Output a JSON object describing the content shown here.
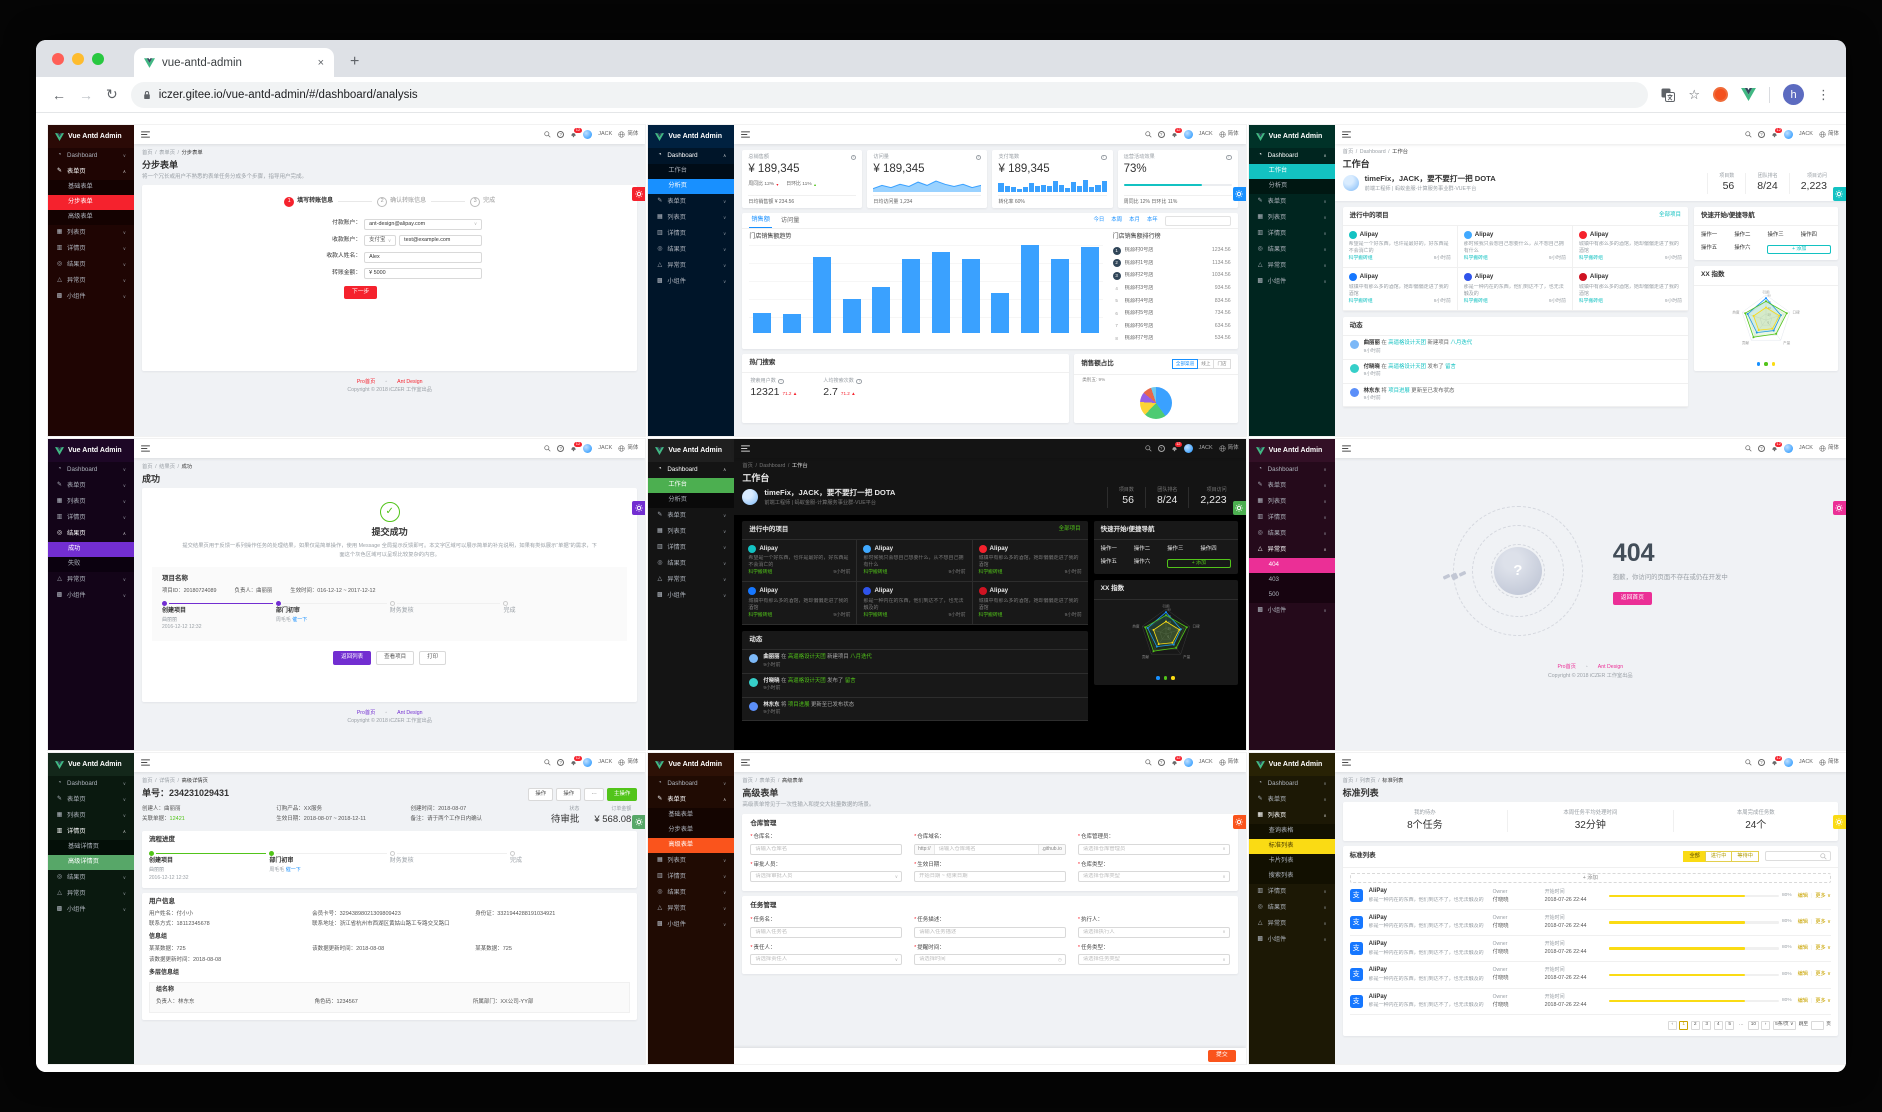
{
  "browser": {
    "tab_title": "vue-antd-admin",
    "url": "iczer.gitee.io/vue-antd-admin/#/dashboard/analysis",
    "profile_initial": "h"
  },
  "shared": {
    "logo": "Vue Antd Admin",
    "user": "JACK",
    "badge": "12",
    "lang": "简体",
    "menu": [
      {
        "id": "dash",
        "label": "Dashboard",
        "children": [
          "工作台",
          "分析页"
        ]
      },
      {
        "id": "form",
        "label": "表单页",
        "children": [
          "基础表单",
          "分步表单",
          "高级表单"
        ]
      },
      {
        "id": "list",
        "label": "列表页",
        "children": [
          "查询表格",
          "标准列表",
          "卡片列表",
          "搜索列表"
        ]
      },
      {
        "id": "detail",
        "label": "详情页",
        "children": [
          "基础详情页",
          "高级详情页"
        ]
      },
      {
        "id": "result",
        "label": "结果页",
        "children": [
          "成功",
          "失败"
        ]
      },
      {
        "id": "exception",
        "label": "异常页",
        "children": [
          "404",
          "403",
          "500"
        ]
      },
      {
        "id": "widget",
        "label": "小组件",
        "children": []
      }
    ],
    "footer_links": [
      "Pro首页",
      "Ant Design"
    ],
    "copyright": "Copyright © 2018 iCZER 工作室出品"
  },
  "workbench": {
    "breadcrumb": [
      "首页",
      "Dashboard",
      "工作台"
    ],
    "title": "工作台",
    "greeting": "timeFix，JACK，要不要打一把 DOTA",
    "role": "前端工程师 | 蚂蚁金服-计算服务事业群-VUE平台",
    "stats": [
      {
        "label": "项目数",
        "value": "56"
      },
      {
        "label": "团队排名",
        "value": "8/24"
      },
      {
        "label": "项目访问",
        "value": "2,223"
      }
    ],
    "projects_title": "进行中的项目",
    "all_link": "全部项目",
    "project_name": "Alipay",
    "group": "科学搬砖组",
    "time": "9小时前",
    "projects": [
      {
        "desc": "希望是一个好东西，也许是最好的，好东西是不会消亡的",
        "color": "#13c2c2"
      },
      {
        "desc": "那时候我只会想自己想要什么，从不想自己拥有什么",
        "color": "#40a9ff"
      },
      {
        "desc": "城镇中有那么多的酒馆，她却偏偏走进了我的酒馆",
        "color": "#f5222d"
      },
      {
        "desc": "城镇中有那么多的酒馆，她却偏偏走进了我的酒馆",
        "color": "#1677ff"
      },
      {
        "desc": "那是一种内在的东西，他们到达不了，也无法触及的",
        "color": "#2f54eb"
      },
      {
        "desc": "城镇中有那么多的酒馆，她却偏偏走进了我的酒馆",
        "color": "#cf1322"
      }
    ],
    "quick_title": "快速开始/便捷导航",
    "ops": [
      "操作一",
      "操作二",
      "操作三",
      "操作四",
      "操作五",
      "操作六"
    ],
    "add": "添加",
    "radar_title": "XX 指数",
    "radar": {
      "axes": [
        "引用",
        "口碑",
        "产量",
        "贡献",
        "热度"
      ],
      "max": 80,
      "rings": [
        20,
        40,
        60,
        80
      ],
      "series": [
        {
          "color": "#1890ff",
          "values": [
            70,
            50,
            42,
            50,
            62
          ]
        },
        {
          "color": "#52c41a",
          "values": [
            60,
            70,
            55,
            68,
            70
          ]
        },
        {
          "color": "#fadb14",
          "values": [
            40,
            45,
            35,
            40,
            42
          ]
        }
      ]
    },
    "feed_title": "动态",
    "feed": [
      {
        "user": "曲丽丽",
        "t1": "在",
        "link1": "高逼格设计天团",
        "t2": "新建项目",
        "link2": "八月迭代",
        "time": "9小时前",
        "color": "#7cb8f7"
      },
      {
        "user": "付晓晓",
        "t1": "在",
        "link1": "高逼格设计天团",
        "t2": "发布了",
        "link2": "留言",
        "time": "9小时前",
        "color": "#36cfc9"
      },
      {
        "user": "林东东",
        "t1": "将",
        "link1": "项目进展",
        "t2": "更新至已发布状态",
        "link2": "",
        "time": "9小时前",
        "color": "#5b8ff9"
      }
    ]
  },
  "panels": [
    {
      "name": "step-form",
      "type": "stepform",
      "open": "form",
      "active": "分步表单",
      "theme": {
        "accent": "#f5222d",
        "sidebar": "#1f0503",
        "submenu": "#140201",
        "logo_bg": "#2b0a06"
      },
      "breadcrumb": [
        "首页",
        "表单页",
        "分步表单"
      ],
      "title": "分步表单",
      "desc": "将一个冗长或用户不熟悉的表单任务分成多个步骤，指导用户完成。",
      "steps": [
        {
          "n": "1",
          "label": "填写转账信息",
          "state": "current"
        },
        {
          "n": "2",
          "label": "确认转账信息",
          "state": ""
        },
        {
          "n": "3",
          "label": "完成",
          "state": ""
        }
      ],
      "fields": [
        {
          "label": "付款账户：",
          "value": "ant-design@alipay.com",
          "select": true
        },
        {
          "label": "收款账户：",
          "prefix": "支付宝",
          "value": "test@example.com"
        },
        {
          "label": "收款人姓名：",
          "value": "Alex"
        },
        {
          "label": "转账金额：",
          "value": "¥ 5000"
        }
      ],
      "next": "下一步",
      "show_footer": true
    },
    {
      "name": "analysis",
      "type": "analysis",
      "open": "dash",
      "active": "分析页",
      "theme": {
        "accent": "#1890ff",
        "sidebar": "#001529",
        "submenu": "#000c17",
        "logo_bg": "#002140"
      },
      "cards": [
        {
          "title": "总销售额",
          "value": "¥ 189,345",
          "body": "trend",
          "foot": "日均销售额 ¥ 234.56",
          "trend": [
            {
              "label": "周同比",
              "value": "12%",
              "dir": "down"
            },
            {
              "label": "日环比",
              "value": "11%",
              "dir": "up"
            }
          ]
        },
        {
          "title": "访问量",
          "value": "¥ 189,345",
          "body": "area",
          "foot": "日均访问量 1,234",
          "spark": [
            3,
            6,
            4,
            7,
            5,
            9,
            6,
            10,
            7,
            5,
            7,
            4,
            6
          ]
        },
        {
          "title": "支付笔数",
          "value": "¥ 189,345",
          "body": "bars",
          "foot": "转化率 60%",
          "spark": [
            7,
            5,
            4,
            2,
            4,
            7,
            5,
            6,
            5,
            9,
            6,
            3,
            8,
            5,
            10,
            4,
            6,
            9
          ]
        },
        {
          "title": "运营活动效果",
          "value": "73%",
          "body": "progress",
          "pct": 73,
          "foot": "周同比 12% 日环比 11%"
        }
      ],
      "tabs": [
        "销售额",
        "访问量"
      ],
      "ranges": [
        "今日",
        "本周",
        "本月",
        "本年"
      ],
      "trend_title": "门店销售额趋势",
      "bars": [
        23,
        22,
        86,
        39,
        52,
        84,
        92,
        84,
        45,
        100,
        84,
        98
      ],
      "rank_title": "门店销售额排行榜",
      "ranks": [
        [
          "1",
          "桃源村0号店",
          "1234.56"
        ],
        [
          "2",
          "桃源村1号店",
          "1134.56"
        ],
        [
          "3",
          "桃源村2号店",
          "1034.56"
        ],
        [
          "4",
          "桃源村3号店",
          "934.56"
        ],
        [
          "5",
          "桃源村4号店",
          "834.56"
        ],
        [
          "6",
          "桃源村5号店",
          "734.56"
        ],
        [
          "7",
          "桃源村6号店",
          "634.56"
        ],
        [
          "8",
          "桃源村7号店",
          "534.56"
        ]
      ],
      "hot_title": "热门搜索",
      "hot": [
        {
          "label": "搜索用户数",
          "value": "12321",
          "delta": "71.2"
        },
        {
          "label": "人均搜索次数",
          "value": "2.7",
          "delta": "71.2"
        }
      ],
      "share_title": "销售额占比",
      "share_toggle": [
        "全部渠道",
        "线上",
        "门店"
      ],
      "share_label": "类别五: 9%"
    },
    {
      "name": "workbench-teal",
      "type": "workbench",
      "open": "dash",
      "active": "工作台",
      "theme": {
        "accent": "#13c2c2",
        "sidebar": "#00251f",
        "submenu": "#001712",
        "logo_bg": "#003228"
      }
    },
    {
      "name": "result-success",
      "type": "result",
      "open": "result",
      "active": "成功",
      "theme": {
        "accent": "#722ed1",
        "sidebar": "#130418",
        "submenu": "#0b010f",
        "logo_bg": "#1d0726"
      },
      "breadcrumb": [
        "首页",
        "结果页",
        "成功"
      ],
      "title": "成功",
      "headline": "提交成功",
      "desc": "提交结果页用于反馈一系列操作任务的处理结果，如果仅是简单操作，使用 Message 全局提示反馈即可。本文字区域可以展示简单的补充说明，如果有类似展示“单据”的需求，下面这个灰色区域可以呈现比较复杂的内容。",
      "box_title": "项目名称",
      "box_fields": [
        "项目ID：20180724089",
        "负责人：曲丽丽",
        "生效时间：016-12-12 ~ 2017-12-12"
      ],
      "steps": [
        {
          "title": "创建项目",
          "sub1": "曲丽丽",
          "sub2": "2016-12-12 12:32",
          "state": "done"
        },
        {
          "title": "部门初审",
          "sub1": "周毛毛",
          "link": "催一下",
          "state": "current"
        },
        {
          "title": "财务复核",
          "state": ""
        },
        {
          "title": "完成",
          "state": ""
        }
      ],
      "buttons": [
        {
          "label": "返回列表",
          "primary": true
        },
        {
          "label": "查看项目"
        },
        {
          "label": "打印"
        }
      ],
      "show_footer": true
    },
    {
      "name": "workbench-dark",
      "type": "workbench",
      "open": "dash",
      "active": "工作台",
      "theme": {
        "accent": "#4caf50",
        "accent2": "#52c41a",
        "sidebar": "#141414",
        "submenu": "#0a0a0a",
        "logo_bg": "#1f1f1f",
        "dark": true
      }
    },
    {
      "name": "error-404",
      "type": "e404",
      "open": "exception",
      "active": "404",
      "theme": {
        "accent": "#eb2f96",
        "sidebar": "#250a1b",
        "submenu": "#170410",
        "logo_bg": "#331026"
      },
      "code": "404",
      "message": "抱歉，你访问的页面不存在或仍在开发中",
      "button": "返回首页",
      "show_footer": true
    },
    {
      "name": "advanced-detail",
      "type": "detail",
      "open": "detail",
      "active": "高级详情页",
      "theme": {
        "accent": "#57a768",
        "accent2": "#52c41a",
        "sidebar": "#0a190f",
        "submenu": "#040f08",
        "logo_bg": "#13271a"
      },
      "breadcrumb": [
        "首页",
        "详情页",
        "高级详情页"
      ],
      "title": "单号：234231029431",
      "actions": [
        "操作",
        "操作",
        "···"
      ],
      "primary_action": "主操作",
      "fields": [
        [
          "创建人：",
          "曲丽丽"
        ],
        [
          "订购产品：",
          "XX服务"
        ],
        [
          "创建时间：",
          "2018-08-07"
        ],
        [
          "关联单据：",
          "12421"
        ],
        [
          "生效日期：",
          "2018-08-07 ~ 2018-12-11"
        ],
        [
          "备注：",
          "请于两个工作日内确认"
        ]
      ],
      "link_field": 3,
      "status": {
        "label": "状态",
        "value": "待审批"
      },
      "amount": {
        "label": "订单金额",
        "value": "¥ 568.08"
      },
      "flow_title": "流程进度",
      "steps": [
        {
          "title": "创建项目",
          "sub1": "曲丽丽",
          "sub2": "2016-12-12 12:32",
          "state": "done"
        },
        {
          "title": "部门初审",
          "sub1": "周毛毛",
          "link": "催一下",
          "state": "current"
        },
        {
          "title": "财务复核",
          "state": ""
        },
        {
          "title": "完成",
          "state": ""
        }
      ],
      "user_title": "用户信息",
      "user_rows": [
        [
          "用户姓名：付小小",
          "会员卡号：32943898021309809423",
          "身份证：3321944288191034921"
        ],
        [
          "联系方式：18112345678",
          "联系地址：浙江省杭州市西湖区黄姑山路工专路交叉路口",
          ""
        ]
      ],
      "group_title": "信息组",
      "group_rows": [
        [
          "某某数据：725",
          "该数据更新时间：2018-08-08",
          "某某数据：725"
        ],
        [
          "该数据更新时间：2018-08-08",
          "",
          ""
        ]
      ],
      "multi_title": "多层信息组",
      "multi_group": "组名称",
      "multi_rows": [
        [
          "负责人：林东东",
          "角色码：1234567",
          "所属部门：XX公司-YY部"
        ]
      ]
    },
    {
      "name": "advanced-form",
      "type": "advform",
      "open": "form",
      "active": "高级表单",
      "theme": {
        "accent": "#fa541c",
        "sidebar": "#200b03",
        "submenu": "#140501",
        "logo_bg": "#2d1106"
      },
      "breadcrumb": [
        "首页",
        "表单页",
        "高级表单"
      ],
      "title": "高级表单",
      "desc": "高级表单常见于一次性输入和提交大批量数据的场景。",
      "sections": [
        {
          "title": "仓库管理",
          "fields": [
            {
              "label": "仓库名",
              "ph": "请输入仓库名"
            },
            {
              "label": "仓库域名",
              "pre": "http://",
              "ph": "请输入仓库域名",
              "suf": ".github.io"
            },
            {
              "label": "仓库管理员",
              "ph": "请选择仓库管理员",
              "select": true
            },
            {
              "label": "审批人员",
              "ph": "请选择审批人员",
              "select": true
            },
            {
              "label": "生效日期",
              "ph": "开始日期 ~ 结束日期"
            },
            {
              "label": "仓库类型",
              "ph": "请选择仓库类型",
              "select": true
            }
          ]
        },
        {
          "title": "任务管理",
          "fields": [
            {
              "label": "任务名",
              "ph": "请输入任务名"
            },
            {
              "label": "任务描述",
              "ph": "请输入任务描述"
            },
            {
              "label": "执行人",
              "ph": "请选择执行人",
              "select": true
            },
            {
              "label": "责任人",
              "ph": "请选择责任人",
              "select": true
            },
            {
              "label": "提醒时间",
              "ph": "请选择时间",
              "clock": true
            },
            {
              "label": "任务类型",
              "ph": "请选择任务类型",
              "select": true
            }
          ]
        }
      ],
      "submit": "提交"
    },
    {
      "name": "standard-list",
      "type": "stdlist",
      "open": "list",
      "active": "标准列表",
      "theme": {
        "accent": "#fadb14",
        "accent2": "#c9a400",
        "sidebar": "#1c1805",
        "submenu": "#121001",
        "logo_bg": "#282205",
        "dark_text": true
      },
      "breadcrumb": [
        "首页",
        "列表页",
        "标准列表"
      ],
      "title": "标准列表",
      "stats": [
        {
          "label": "我的待办",
          "value": "8个任务"
        },
        {
          "label": "本周任务平均处理时间",
          "value": "32分钟"
        },
        {
          "label": "本周完成任务数",
          "value": "24个"
        }
      ],
      "card_title": "标准列表",
      "pills": [
        "全部",
        "进行中",
        "等待中"
      ],
      "add": "+ 添加",
      "row": {
        "name": "AliPay",
        "icon_text": "支",
        "desc": "那是一种内在的东西，他们到达不了，也无法触及的",
        "owner_label": "Owner",
        "owner": "付晓晓",
        "time_label": "开始时间",
        "time": "2018-07-26 22:44",
        "pct": 80,
        "pct_label": "80%",
        "edit": "编辑",
        "more": "更多"
      },
      "row_count": 5,
      "pagination": [
        "‹",
        "1",
        "2",
        "3",
        "4",
        "5",
        "…",
        "10",
        "›"
      ],
      "per_page": "5条/页",
      "jump_pre": "跳至",
      "jump_post": "页"
    }
  ]
}
